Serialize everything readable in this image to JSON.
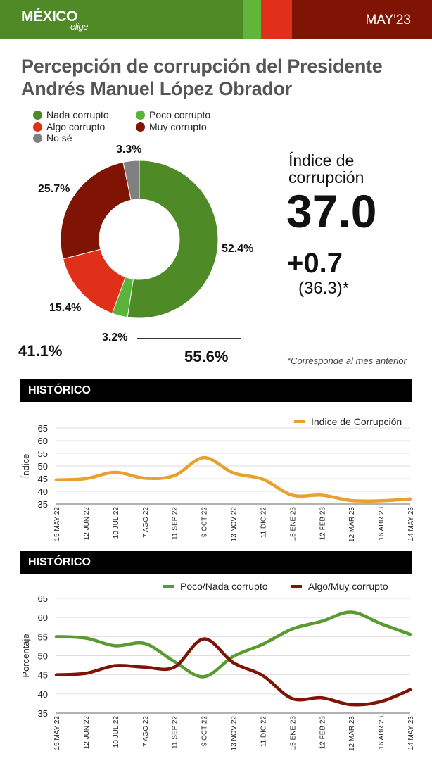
{
  "header": {
    "logo_text": "MÉXICO elige",
    "date": "MAY'23",
    "colors": [
      "#4f8a26",
      "#5fb63a",
      "#e0301a",
      "#7f1405"
    ]
  },
  "title_line1": "Percepción de corrupción del Presidente",
  "title_line2": "Andrés Manuel López Obrador",
  "donut": {
    "legend": [
      {
        "label": "Nada corrupto",
        "color": "#4e8a26"
      },
      {
        "label": "Poco corrupto",
        "color": "#5ab43a"
      },
      {
        "label": "Algo corrupto",
        "color": "#e0301a"
      },
      {
        "label": "Muy corrupto",
        "color": "#7f1405"
      },
      {
        "label": "No sé",
        "color": "#808080"
      }
    ],
    "values": [
      52.4,
      3.2,
      15.4,
      25.7,
      3.3
    ],
    "labels": [
      "52.4%",
      "3.2%",
      "15.4%",
      "25.7%",
      "3.3%"
    ],
    "total_negative": "41.1%",
    "total_positive": "55.6%"
  },
  "index": {
    "label_line1": "Índice de",
    "label_line2": "corrupción",
    "value": "37.0",
    "change": "+0.7",
    "previous": "(36.3)*",
    "footnote": "*Corresponde al mes anterior"
  },
  "chart_data": [
    {
      "type": "line",
      "section_title": "HISTÓRICO",
      "ylabel": "Índice",
      "ylim": [
        35,
        65
      ],
      "yticks": [
        35,
        40,
        45,
        50,
        55,
        60,
        65
      ],
      "grid": true,
      "legend_position": "top-right",
      "categories": [
        "15 MAY 22",
        "12 JUN 22",
        "10 JUL 22",
        "7 AGO 22",
        "11 SEP 22",
        "9 OCT 22",
        "13 NOV 22",
        "11 DIC 22",
        "15 ENE 23",
        "12 FEB 23",
        "12 MAR 23",
        "16 ABR 23",
        "14 MAY 23"
      ],
      "series": [
        {
          "name": "Índice de Corrupción",
          "color": "#e8a030",
          "values": [
            44.5,
            45,
            47.5,
            45.2,
            46.2,
            53.3,
            47.3,
            44.8,
            38.5,
            38.5,
            36.4,
            36.3,
            37.0
          ]
        }
      ]
    },
    {
      "type": "line",
      "section_title": "HISTÓRICO",
      "ylabel": "Porcentaje",
      "ylim": [
        35,
        65
      ],
      "yticks": [
        35,
        40,
        45,
        50,
        55,
        60,
        65
      ],
      "grid": true,
      "legend_position": "top-right",
      "categories": [
        "15 MAY 22",
        "12 JUN 22",
        "10 JUL 22",
        "7 AGO 22",
        "11 SEP 22",
        "9 OCT 22",
        "13 NOV 22",
        "11 DIC 22",
        "15 ENE 23",
        "12 FEB 23",
        "12 MAR 23",
        "16 ABR 23",
        "14 MAY 23"
      ],
      "series": [
        {
          "name": "Poco/Nada corrupto",
          "color": "#5a9a30",
          "values": [
            55,
            54.6,
            52.6,
            53.2,
            48.5,
            44.5,
            49.8,
            53,
            57,
            59,
            61.4,
            58.4,
            55.6
          ]
        },
        {
          "name": "Algo/Muy corrupto",
          "color": "#7f1405",
          "values": [
            45,
            45.4,
            47.4,
            47,
            47,
            54.4,
            48.2,
            44.8,
            38.8,
            39,
            37.2,
            38,
            41.1
          ]
        }
      ]
    }
  ]
}
